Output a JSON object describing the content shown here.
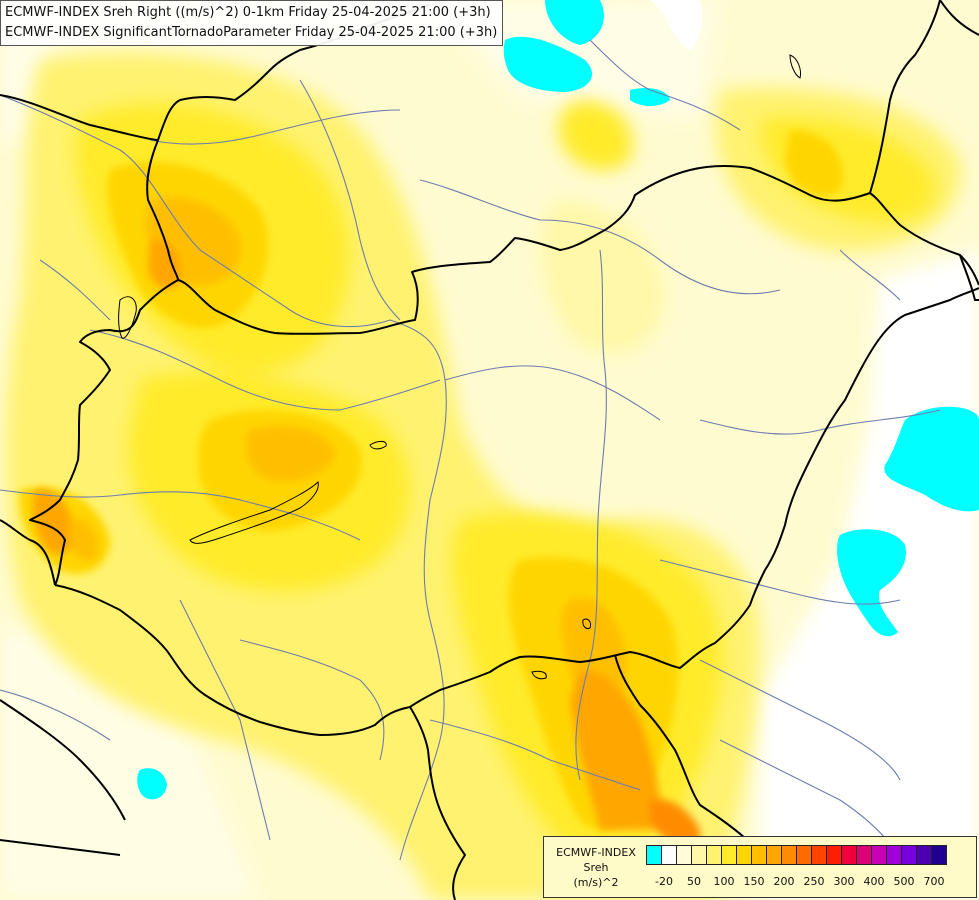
{
  "title_lines": [
    "ECMWF-INDEX Sreh Right ((m/s)^2) 0-1km Friday 25-04-2025 21:00 (+3h)",
    "ECMWF-INDEX SignificantTornadoParameter Friday 25-04-2025 21:00 (+3h)"
  ],
  "legend": {
    "line1": "ECMWF-INDEX",
    "line2": "Sreh",
    "line3": "(m/s)^2",
    "colors": [
      "#00ffff",
      "#ffffff",
      "#fffdd8",
      "#fff8a8",
      "#fff270",
      "#ffeb2a",
      "#ffd500",
      "#ffbf00",
      "#ffa600",
      "#ff8c00",
      "#ff6a00",
      "#ff4400",
      "#ff1f00",
      "#f0003c",
      "#dc0078",
      "#c800b4",
      "#a000dc",
      "#7800dc",
      "#4b00b4",
      "#1e0090"
    ],
    "ticks": [
      "-20",
      "50",
      "100",
      "150",
      "200",
      "250",
      "300",
      "400",
      "500",
      "700"
    ]
  },
  "colors": {
    "background": "#fffbd0",
    "cyan_area": "#00ffff",
    "border_line": "#000000",
    "river_line": "#6e7cb0"
  }
}
